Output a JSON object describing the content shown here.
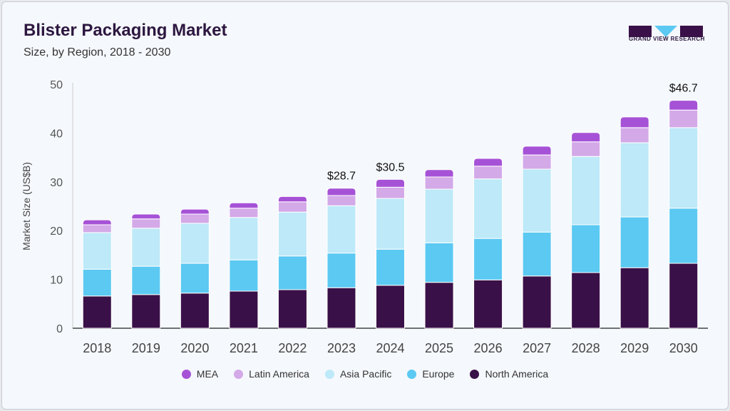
{
  "header": {
    "title": "Blister Packaging Market",
    "subtitle": "Size, by Region, 2018 - 2030",
    "logo_text": "GRAND VIEW RESEARCH"
  },
  "chart_data": {
    "type": "bar",
    "stacked": true,
    "title": "Blister Packaging Market",
    "subtitle": "Size, by Region, 2018 - 2030",
    "xlabel": "",
    "ylabel": "Market Size (US$B)",
    "ylim": [
      0,
      50
    ],
    "yticks": [
      0,
      10,
      20,
      30,
      40,
      50
    ],
    "grid": false,
    "legend": "bottom",
    "categories": [
      "2018",
      "2019",
      "2020",
      "2021",
      "2022",
      "2023",
      "2024",
      "2025",
      "2026",
      "2027",
      "2028",
      "2029",
      "2030"
    ],
    "series": [
      {
        "name": "North America",
        "color": "#3a1048",
        "values": [
          6.6,
          6.9,
          7.2,
          7.6,
          7.9,
          8.3,
          8.8,
          9.4,
          9.9,
          10.7,
          11.4,
          12.4,
          13.3
        ]
      },
      {
        "name": "Europe",
        "color": "#5bc9f2",
        "values": [
          5.5,
          5.8,
          6.1,
          6.4,
          6.9,
          7.1,
          7.4,
          8.1,
          8.5,
          9.0,
          9.8,
          10.4,
          11.3
        ]
      },
      {
        "name": "Asia Pacific",
        "color": "#bde9f8",
        "values": [
          7.5,
          7.8,
          8.2,
          8.7,
          9.0,
          9.7,
          10.4,
          11.0,
          12.2,
          12.9,
          14.0,
          15.2,
          16.5
        ]
      },
      {
        "name": "Latin America",
        "color": "#d3a9e8",
        "values": [
          1.6,
          1.9,
          1.9,
          1.9,
          2.1,
          2.1,
          2.3,
          2.5,
          2.6,
          2.9,
          3.0,
          3.1,
          3.6
        ]
      },
      {
        "name": "MEA",
        "color": "#a652d6",
        "values": [
          1.0,
          1.0,
          1.0,
          1.1,
          1.1,
          1.5,
          1.6,
          1.5,
          1.6,
          1.8,
          1.9,
          2.2,
          2.0
        ]
      }
    ],
    "annotations": [
      {
        "category": "2023",
        "label": "$28.7"
      },
      {
        "category": "2024",
        "label": "$30.5"
      },
      {
        "category": "2030",
        "label": "$46.7"
      }
    ],
    "legend_order": [
      "MEA",
      "Latin America",
      "Asia Pacific",
      "Europe",
      "North America"
    ]
  }
}
